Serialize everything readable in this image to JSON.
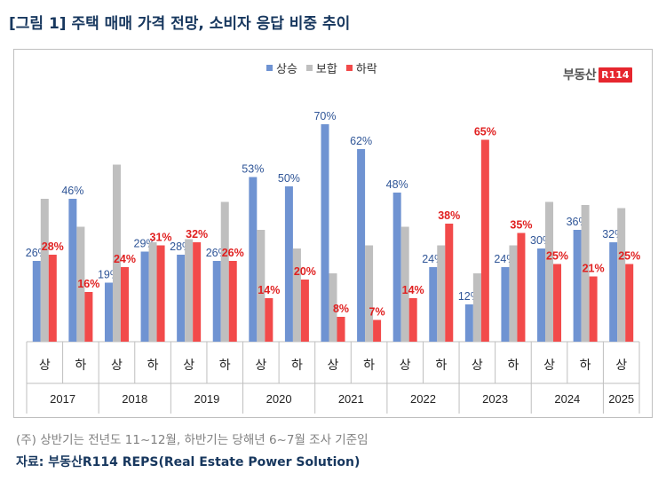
{
  "title": "[그림 1] 주택 매매 가격 전망, 소비자 응답 비중 추이",
  "legend": {
    "up": "상승",
    "flat": "보합",
    "down": "하락"
  },
  "logo": {
    "word": "부동산",
    "box": "R114"
  },
  "note": "(주) 상반기는 전년도 11~12월, 하반기는 당해년 6~7월 조사 기준임",
  "source": "자료: 부동산R114 REPS(Real Estate Power Solution)",
  "colors": {
    "up": "#6f93d2",
    "flat": "#bfbfbf",
    "down": "#f24a4a",
    "up_label": "#2f5597",
    "down_label": "#e02020"
  },
  "chart_data": {
    "type": "bar",
    "categories": [
      "상",
      "하",
      "상",
      "하",
      "상",
      "하",
      "상",
      "하",
      "상",
      "하",
      "상",
      "하",
      "상",
      "하",
      "상",
      "하",
      "상"
    ],
    "years": [
      {
        "label": "2017",
        "span": 2
      },
      {
        "label": "2018",
        "span": 2
      },
      {
        "label": "2019",
        "span": 2
      },
      {
        "label": "2020",
        "span": 2
      },
      {
        "label": "2021",
        "span": 2
      },
      {
        "label": "2022",
        "span": 2
      },
      {
        "label": "2023",
        "span": 2
      },
      {
        "label": "2024",
        "span": 2
      },
      {
        "label": "2025",
        "span": 1
      }
    ],
    "series": [
      {
        "name": "상승",
        "values": [
          26,
          46,
          19,
          29,
          28,
          26,
          53,
          50,
          70,
          62,
          48,
          24,
          12,
          24,
          30,
          36,
          32
        ]
      },
      {
        "name": "보합",
        "values": [
          46,
          37,
          57,
          32,
          33,
          45,
          36,
          30,
          22,
          31,
          37,
          31,
          22,
          31,
          45,
          44,
          43
        ]
      },
      {
        "name": "하락",
        "values": [
          28,
          16,
          24,
          31,
          32,
          26,
          14,
          20,
          8,
          7,
          14,
          38,
          65,
          35,
          25,
          21,
          25
        ]
      }
    ],
    "data_labels": [
      "상승",
      "하락"
    ],
    "ylim": [
      0,
      70
    ],
    "grid": false,
    "legend_position": "top-center"
  }
}
